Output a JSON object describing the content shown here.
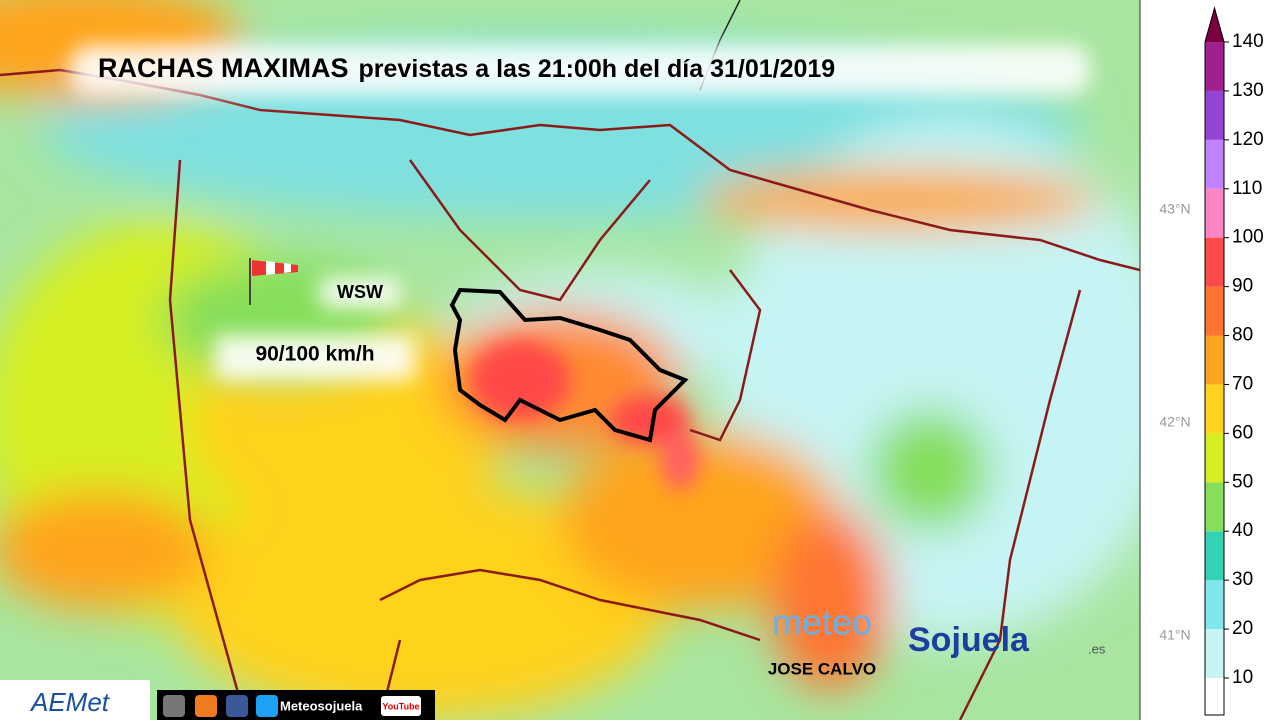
{
  "map": {
    "title_bold": "RACHAS MAXIMAS",
    "title_rest": "previstas a las 21:00h del día 31/01/2019",
    "wind_direction": "WSW",
    "wind_speed": "90/100 km/h",
    "latitude_labels": [
      "43°N",
      "42°N",
      "41°N"
    ],
    "author": "JOSE CALVO",
    "brand_meteo": "meteo",
    "brand_name": "Sojuela",
    "brand_tld": ".es",
    "source_logo": "AEMet",
    "social_handle": "Meteosojuela",
    "video_site": "YouTube"
  },
  "colorbar": {
    "ticks": [
      10,
      20,
      30,
      40,
      50,
      60,
      70,
      80,
      90,
      100,
      110,
      120,
      130,
      140
    ],
    "colors": [
      "#ffffff",
      "#c6f4f4",
      "#80e6ea",
      "#33d2b4",
      "#86de5a",
      "#d6ef22",
      "#ffd21e",
      "#ffa41e",
      "#ff7430",
      "#ff4a4a",
      "#ff84c4",
      "#c282ff",
      "#9444d4",
      "#a0208e",
      "#7a0040"
    ]
  }
}
